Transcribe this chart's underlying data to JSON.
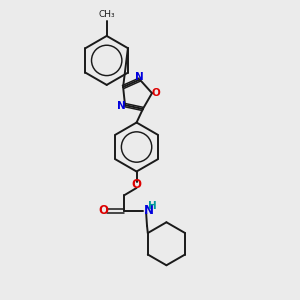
{
  "background_color": "#ebebeb",
  "bond_color": "#1a1a1a",
  "atom_colors": {
    "N": "#0000dd",
    "O": "#dd0000",
    "NH": "#0000dd",
    "H": "#009999"
  },
  "figsize": [
    3.0,
    3.0
  ],
  "dpi": 100
}
